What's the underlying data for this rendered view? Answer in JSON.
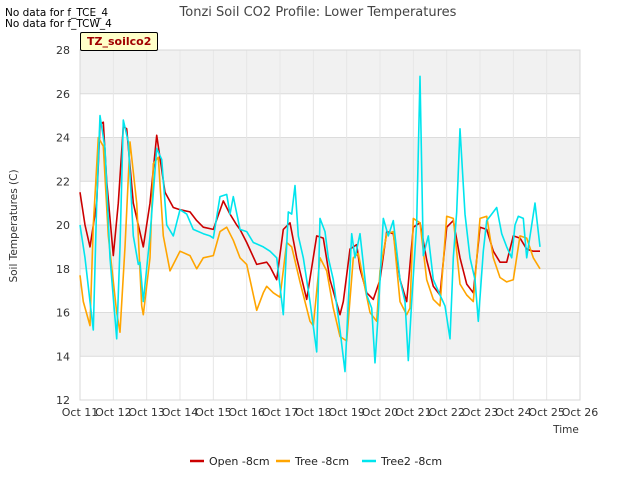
{
  "notices": [
    "No data for f_TCE_4",
    "No data for f_TCW_4"
  ],
  "badge_label": "TZ_soilco2",
  "chart_data": {
    "type": "line",
    "title": "Tonzi Soil CO2 Profile: Lower Temperatures",
    "xlabel": "Time",
    "ylabel": "Soil Temperatures (C)",
    "x_ticks": [
      "Oct 11",
      "Oct 12",
      "Oct 13",
      "Oct 14",
      "Oct 15",
      "Oct 16",
      "Oct 17",
      "Oct 18",
      "Oct 19",
      "Oct 20",
      "Oct 21",
      "Oct 22",
      "Oct 23",
      "Oct 24",
      "Oct 25",
      "Oct 26"
    ],
    "x_tick_days": [
      11,
      12,
      13,
      14,
      15,
      16,
      17,
      18,
      19,
      20,
      21,
      22,
      23,
      24,
      25,
      26
    ],
    "xlim_days": [
      11,
      26
    ],
    "y_ticks": [
      12,
      14,
      16,
      18,
      20,
      22,
      24,
      26,
      28
    ],
    "ylim": [
      12,
      28
    ],
    "grid": true,
    "legend_position": "bottom",
    "series": [
      {
        "name": "Open -8cm",
        "color": "#cc0000",
        "x_days": [
          11,
          11.15,
          11.3,
          11.5,
          11.6,
          11.7,
          11.8,
          12,
          12.15,
          12.3,
          12.4,
          12.6,
          12.9,
          13.1,
          13.3,
          13.55,
          13.8,
          14,
          14.3,
          14.5,
          14.7,
          15,
          15.3,
          15.5,
          15.7,
          15.8,
          16,
          16.3,
          16.6,
          16.7,
          16.9,
          17.1,
          17.3,
          17.5,
          17.8,
          18.1,
          18.3,
          18.5,
          18.8,
          18.9,
          19.1,
          19.3,
          19.4,
          19.6,
          19.8,
          20,
          20.2,
          20.4,
          20.6,
          20.8,
          21,
          21.2,
          21.4,
          21.6,
          21.8,
          22,
          22.2,
          22.4,
          22.6,
          22.8,
          23,
          23.2,
          23.4,
          23.6,
          23.8,
          24,
          24.2,
          24.4,
          24.6,
          24.8
        ],
        "y": [
          21.5,
          20,
          19,
          21,
          24.6,
          24.7,
          22,
          18.6,
          21,
          24.5,
          24.4,
          21,
          19,
          21,
          24.1,
          21.5,
          20.8,
          20.7,
          20.6,
          20.2,
          19.9,
          19.8,
          21.1,
          20.5,
          20,
          19.8,
          19.2,
          18.2,
          18.3,
          18.1,
          17.5,
          19.8,
          20.1,
          18.5,
          16.6,
          19.5,
          19.4,
          17.5,
          15.9,
          16.5,
          18.9,
          19.1,
          18,
          16.9,
          16.6,
          17.5,
          19.7,
          19.6,
          17.5,
          16.5,
          19.9,
          20.1,
          18.4,
          17.2,
          16.8,
          19.9,
          20.2,
          18.5,
          17.3,
          16.9,
          19.9,
          19.8,
          18.8,
          18.3,
          18.3,
          19.5,
          19.4,
          18.9,
          18.8,
          18.8
        ]
      },
      {
        "name": "Tree -8cm",
        "color": "#ffa500",
        "x_days": [
          11,
          11.1,
          11.3,
          11.4,
          11.55,
          11.7,
          11.85,
          12.1,
          12.2,
          12.35,
          12.5,
          12.7,
          12.85,
          12.9,
          13.1,
          13.2,
          13.35,
          13.5,
          13.7,
          14,
          14.3,
          14.5,
          14.7,
          15,
          15.2,
          15.4,
          15.6,
          15.8,
          16,
          16.3,
          16.5,
          16.6,
          16.8,
          17,
          17.2,
          17.35,
          17.6,
          17.9,
          18,
          18.2,
          18.4,
          18.6,
          18.8,
          19,
          19.2,
          19.35,
          19.5,
          19.7,
          19.9,
          20,
          20.2,
          20.4,
          20.6,
          20.8,
          20.9,
          21,
          21.2,
          21.4,
          21.6,
          21.8,
          22,
          22.2,
          22.4,
          22.6,
          22.8,
          23,
          23.2,
          23.4,
          23.6,
          23.8,
          24,
          24.2,
          24.4,
          24.6,
          24.8
        ],
        "y": [
          17.7,
          16.5,
          15.4,
          20,
          24,
          23.6,
          19.5,
          16,
          15.1,
          19,
          23.8,
          21,
          16.3,
          15.9,
          18.5,
          22.8,
          23.1,
          19.5,
          17.9,
          18.8,
          18.6,
          18,
          18.5,
          18.6,
          19.7,
          19.9,
          19.3,
          18.5,
          18.2,
          16.1,
          16.9,
          17.2,
          16.9,
          16.7,
          19.2,
          19,
          17.4,
          15.6,
          15.4,
          18.5,
          17.9,
          16.2,
          14.9,
          14.7,
          18.5,
          18.7,
          17.5,
          16,
          15.6,
          17.9,
          19.6,
          19.7,
          16.5,
          15.9,
          16.2,
          20.3,
          20.1,
          17.5,
          16.6,
          16.3,
          20.4,
          20.3,
          17.3,
          16.8,
          16.5,
          20.3,
          20.4,
          18.5,
          17.6,
          17.4,
          17.5,
          19.5,
          19.4,
          18.5,
          18
        ]
      },
      {
        "name": "Tree2 -8cm",
        "color": "#00e5ee",
        "x_days": [
          11,
          11.15,
          11.3,
          11.4,
          11.5,
          11.6,
          11.75,
          11.9,
          12.1,
          12.2,
          12.3,
          12.45,
          12.6,
          12.75,
          12.8,
          12.9,
          13.1,
          13.3,
          13.45,
          13.6,
          13.8,
          14,
          14.2,
          14.4,
          14.7,
          14.9,
          15,
          15.2,
          15.4,
          15.5,
          15.6,
          15.8,
          16,
          16.2,
          16.5,
          16.7,
          16.9,
          17.1,
          17.25,
          17.35,
          17.45,
          17.55,
          17.7,
          17.9,
          18.1,
          18.2,
          18.35,
          18.45,
          18.6,
          18.8,
          18.95,
          19.05,
          19.15,
          19.25,
          19.4,
          19.6,
          19.75,
          19.85,
          19.95,
          20.1,
          20.25,
          20.4,
          20.6,
          20.75,
          20.85,
          20.95,
          21.1,
          21.2,
          21.3,
          21.45,
          21.6,
          21.8,
          21.95,
          22.1,
          22.2,
          22.3,
          22.4,
          22.55,
          22.7,
          22.85,
          22.95,
          23.1,
          23.2,
          23.35,
          23.5,
          23.65,
          23.8,
          23.95,
          24.05,
          24.15,
          24.3,
          24.4,
          24.55,
          24.65,
          24.8
        ],
        "y": [
          20,
          18.5,
          16.5,
          15.2,
          21,
          25,
          23.5,
          18.5,
          14.8,
          19,
          24.8,
          23.8,
          19.5,
          18.2,
          18.3,
          16.5,
          19.5,
          23.5,
          23,
          20,
          19.5,
          20.7,
          20.5,
          19.8,
          19.6,
          19.5,
          19.4,
          21.3,
          21.4,
          20.5,
          21.3,
          19.8,
          19.7,
          19.2,
          19,
          18.8,
          18.5,
          15.9,
          20.6,
          20.5,
          21.8,
          19.5,
          18.5,
          16.5,
          14.2,
          20.3,
          19.7,
          18.5,
          17.5,
          15.2,
          13.3,
          16.5,
          19.6,
          18.5,
          19.6,
          16.8,
          16.2,
          13.7,
          16,
          20.3,
          19.5,
          20.2,
          17.5,
          16.5,
          13.8,
          16.5,
          20.1,
          26.8,
          18.6,
          19.5,
          17.5,
          16.8,
          16.3,
          14.8,
          18.5,
          20.6,
          24.4,
          20.5,
          18.5,
          17.5,
          15.6,
          18.8,
          20.2,
          20.5,
          20.8,
          19.6,
          19,
          18.5,
          20,
          20.4,
          20.3,
          18.5,
          20,
          21,
          19
        ]
      }
    ]
  }
}
